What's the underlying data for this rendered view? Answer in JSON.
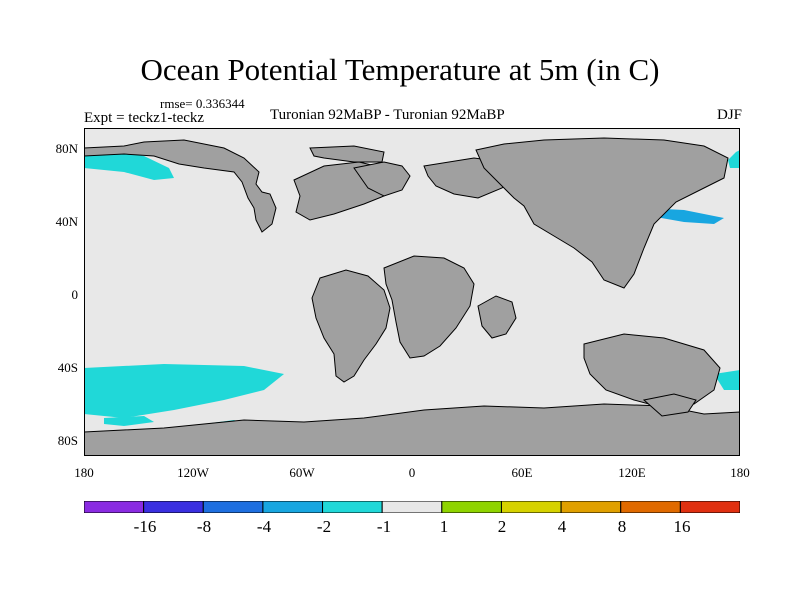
{
  "title": "Ocean Potential Temperature at 5m (in C)",
  "rmse": "rmse= 0.336344",
  "experiment": "Expt = teckz1-teckz",
  "period": "Turonian  92MaBP - Turonian  92MaBP",
  "season": "DJF",
  "lat_labels": [
    "80N",
    "40N",
    "0",
    "40S",
    "80S"
  ],
  "lon_labels": [
    "180",
    "120W",
    "60W",
    "0",
    "60E",
    "120E",
    "180"
  ],
  "legend": {
    "colors": [
      "#8a2be2",
      "#3a2fe0",
      "#1e6fe0",
      "#18a6e0",
      "#20d8d8",
      "#e8e8e8",
      "#8fd400",
      "#d6d200",
      "#e0a000",
      "#e06a00",
      "#e03010"
    ],
    "labels": [
      "-16",
      "-8",
      "-4",
      "-2",
      "-1",
      "1",
      "2",
      "4",
      "8",
      "16"
    ]
  },
  "colors": {
    "ocean": "#e8e8e8",
    "land": "#a0a0a0",
    "anom_neg_small": "#20d8d8",
    "anom_neg_med": "#18a6e0"
  }
}
